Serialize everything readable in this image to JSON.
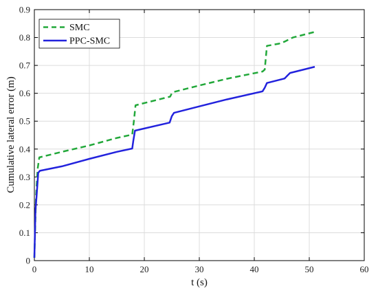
{
  "chart_data": {
    "type": "line",
    "xlabel": "t (s)",
    "ylabel": "Cumulative lateral error (m)",
    "xlim": [
      0,
      60
    ],
    "ylim": [
      0,
      0.9
    ],
    "xticks": [
      0,
      10,
      20,
      30,
      40,
      50,
      60
    ],
    "yticks": [
      0,
      0.1,
      0.2,
      0.3,
      0.4,
      0.5,
      0.6,
      0.7,
      0.8,
      0.9
    ],
    "xtick_labels": [
      "0",
      "10",
      "20",
      "30",
      "40",
      "50",
      "60"
    ],
    "ytick_labels": [
      "0",
      "0.1",
      "0.2",
      "0.3",
      "0.4",
      "0.5",
      "0.6",
      "0.7",
      "0.8",
      "0.9"
    ],
    "grid": true,
    "legend_position": "top-left",
    "series": [
      {
        "name": "SMC",
        "color": "#22a83a",
        "style": "dashed",
        "x": [
          0,
          0.3,
          0.6,
          0.9,
          5,
          10,
          15,
          17.8,
          18.1,
          18.4,
          24.7,
          25.0,
          25.4,
          30,
          35,
          41.5,
          41.9,
          42.3,
          44.5,
          45.5,
          47,
          51
        ],
        "y": [
          0.01,
          0.23,
          0.33,
          0.37,
          0.39,
          0.413,
          0.44,
          0.452,
          0.5,
          0.557,
          0.588,
          0.6,
          0.605,
          0.628,
          0.652,
          0.678,
          0.685,
          0.77,
          0.778,
          0.785,
          0.8,
          0.82
        ]
      },
      {
        "name": "PPC-SMC",
        "color": "#2222dd",
        "style": "solid",
        "x": [
          0,
          0.2,
          0.4,
          0.7,
          1.0,
          5,
          10,
          15,
          17.8,
          18.0,
          18.3,
          24.6,
          25.0,
          25.4,
          30,
          35,
          41.5,
          41.9,
          42.3,
          45.5,
          46.0,
          46.5,
          51
        ],
        "y": [
          0.01,
          0.18,
          0.23,
          0.315,
          0.322,
          0.338,
          0.365,
          0.39,
          0.402,
          0.43,
          0.466,
          0.495,
          0.518,
          0.53,
          0.553,
          0.578,
          0.607,
          0.62,
          0.637,
          0.653,
          0.663,
          0.673,
          0.695
        ]
      }
    ]
  }
}
